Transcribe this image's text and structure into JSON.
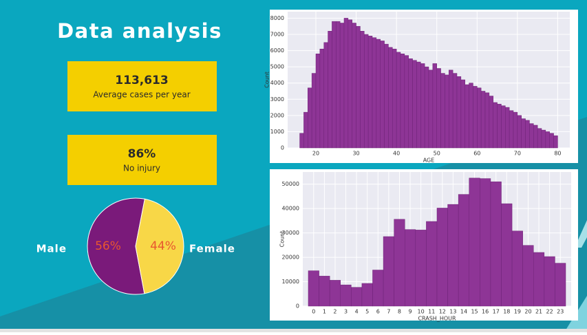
{
  "title": "Data analysis",
  "kpis": [
    {
      "value": "113,613",
      "label": "Average cases per year"
    },
    {
      "value": "86%",
      "label": "No injury"
    }
  ],
  "chart_data": [
    {
      "type": "histogram",
      "xlabel": "AGE",
      "ylabel": "Count",
      "color": "#8e3596",
      "grid": true,
      "bins": [
        16,
        17,
        18,
        19,
        20,
        21,
        22,
        23,
        24,
        25,
        26,
        27,
        28,
        29,
        30,
        31,
        32,
        33,
        34,
        35,
        36,
        37,
        38,
        39,
        40,
        41,
        42,
        43,
        44,
        45,
        46,
        47,
        48,
        49,
        50,
        51,
        52,
        53,
        54,
        55,
        56,
        57,
        58,
        59,
        60,
        61,
        62,
        63,
        64,
        65,
        66,
        67,
        68,
        69,
        70,
        71,
        72,
        73,
        74,
        75,
        76,
        77,
        78,
        79,
        80
      ],
      "values": [
        900,
        2200,
        3700,
        4600,
        5800,
        6100,
        6500,
        7200,
        7800,
        7800,
        7700,
        8000,
        7900,
        7700,
        7500,
        7200,
        7000,
        6900,
        6800,
        6700,
        6600,
        6400,
        6200,
        6100,
        5900,
        5800,
        5700,
        5500,
        5400,
        5300,
        5200,
        5000,
        4800,
        5200,
        4900,
        4600,
        4500,
        4800,
        4600,
        4400,
        4200,
        3900,
        4000,
        3800,
        3700,
        3500,
        3400,
        3200,
        2800,
        2700,
        2600,
        2500,
        2300,
        2200,
        2000,
        1800,
        1700,
        1500,
        1400,
        1200,
        1100,
        1000,
        900,
        750
      ],
      "xlim": [
        13,
        83
      ],
      "xticks": [
        20,
        30,
        40,
        50,
        60,
        70,
        80
      ],
      "ylim": [
        0,
        8400
      ],
      "yticks": [
        0,
        1000,
        2000,
        3000,
        4000,
        5000,
        6000,
        7000,
        8000
      ]
    },
    {
      "type": "bar",
      "xlabel": "CRASH_HOUR",
      "ylabel": "Count",
      "color": "#8e3596",
      "grid": true,
      "categories": [
        "0",
        "1",
        "2",
        "3",
        "4",
        "5",
        "6",
        "7",
        "8",
        "9",
        "10",
        "11",
        "12",
        "13",
        "14",
        "15",
        "16",
        "17",
        "18",
        "19",
        "20",
        "21",
        "22",
        "23"
      ],
      "values": [
        14500,
        12300,
        10600,
        8700,
        7700,
        9300,
        14800,
        28500,
        35600,
        31400,
        31200,
        34700,
        40200,
        41700,
        45800,
        52500,
        52300,
        51000,
        42000,
        30800,
        24900,
        22000,
        20300,
        17600
      ],
      "ylim": [
        0,
        55000
      ],
      "yticks": [
        0,
        10000,
        20000,
        30000,
        40000,
        50000
      ]
    },
    {
      "type": "pie",
      "categories": [
        "Male",
        "Female"
      ],
      "values": [
        56,
        44
      ],
      "value_labels": [
        "56%",
        "44%"
      ],
      "colors": [
        "#7a1a7a",
        "#f8d747"
      ]
    }
  ]
}
